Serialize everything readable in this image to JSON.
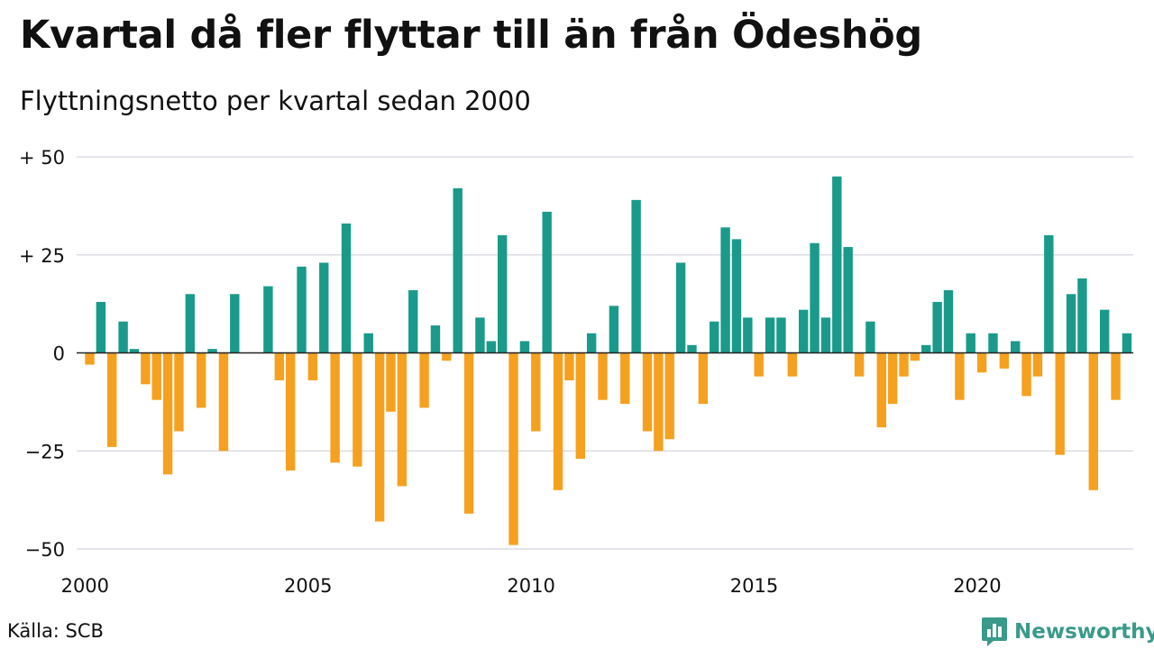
{
  "chart_data": {
    "type": "bar",
    "title": "Kvartal då fler flyttar till än från Ödeshög",
    "subtitle": "Flyttningsnetto per kvartal sedan 2000",
    "ylim": [
      -50,
      50
    ],
    "y_ticks": [
      {
        "value": 50,
        "label": "+ 50"
      },
      {
        "value": 25,
        "label": "+ 25"
      },
      {
        "value": 0,
        "label": "0"
      },
      {
        "value": -25,
        "label": "−25"
      },
      {
        "value": -50,
        "label": "−50"
      }
    ],
    "x_ticks": [
      {
        "value": 2000,
        "label": "2000"
      },
      {
        "value": 2005,
        "label": "2005"
      },
      {
        "value": 2010,
        "label": "2010"
      },
      {
        "value": 2015,
        "label": "2015"
      },
      {
        "value": 2020,
        "label": "2020"
      }
    ],
    "grid": true,
    "colors": {
      "positive": "#1a9a8a",
      "negative": "#f5a11f",
      "grid": "#dcdce6",
      "axis": "#222222"
    },
    "quarters_from_2000": [
      {
        "quarter": "2000 Q1",
        "value": -3
      },
      {
        "quarter": "2000 Q2",
        "value": 13
      },
      {
        "quarter": "2000 Q3",
        "value": -24
      },
      {
        "quarter": "2000 Q4",
        "value": 8
      },
      {
        "quarter": "2001 Q1",
        "value": 1
      },
      {
        "quarter": "2001 Q2",
        "value": -8
      },
      {
        "quarter": "2001 Q3",
        "value": -12
      },
      {
        "quarter": "2001 Q4",
        "value": -31
      },
      {
        "quarter": "2002 Q1",
        "value": -20
      },
      {
        "quarter": "2002 Q2",
        "value": 15
      },
      {
        "quarter": "2002 Q3",
        "value": -14
      },
      {
        "quarter": "2002 Q4",
        "value": 1
      },
      {
        "quarter": "2003 Q1",
        "value": -25
      },
      {
        "quarter": "2003 Q2",
        "value": 15
      },
      {
        "quarter": "2003 Q3",
        "value": 0
      },
      {
        "quarter": "2003 Q4",
        "value": 0
      },
      {
        "quarter": "2004 Q1",
        "value": 17
      },
      {
        "quarter": "2004 Q2",
        "value": -7
      },
      {
        "quarter": "2004 Q3",
        "value": -30
      },
      {
        "quarter": "2004 Q4",
        "value": 22
      },
      {
        "quarter": "2005 Q1",
        "value": -7
      },
      {
        "quarter": "2005 Q2",
        "value": 23
      },
      {
        "quarter": "2005 Q3",
        "value": -28
      },
      {
        "quarter": "2005 Q4",
        "value": 33
      },
      {
        "quarter": "2006 Q1",
        "value": -29
      },
      {
        "quarter": "2006 Q2",
        "value": 5
      },
      {
        "quarter": "2006 Q3",
        "value": -43
      },
      {
        "quarter": "2006 Q4",
        "value": -15
      },
      {
        "quarter": "2007 Q1",
        "value": -34
      },
      {
        "quarter": "2007 Q2",
        "value": 16
      },
      {
        "quarter": "2007 Q3",
        "value": -14
      },
      {
        "quarter": "2007 Q4",
        "value": 7
      },
      {
        "quarter": "2008 Q1",
        "value": -2
      },
      {
        "quarter": "2008 Q2",
        "value": 42
      },
      {
        "quarter": "2008 Q3",
        "value": -41
      },
      {
        "quarter": "2008 Q4",
        "value": 9
      },
      {
        "quarter": "2009 Q1",
        "value": 3
      },
      {
        "quarter": "2009 Q2",
        "value": 30
      },
      {
        "quarter": "2009 Q3",
        "value": -49
      },
      {
        "quarter": "2009 Q4",
        "value": 3
      },
      {
        "quarter": "2010 Q1",
        "value": -20
      },
      {
        "quarter": "2010 Q2",
        "value": 36
      },
      {
        "quarter": "2010 Q3",
        "value": -35
      },
      {
        "quarter": "2010 Q4",
        "value": -7
      },
      {
        "quarter": "2011 Q1",
        "value": -27
      },
      {
        "quarter": "2011 Q2",
        "value": 5
      },
      {
        "quarter": "2011 Q3",
        "value": -12
      },
      {
        "quarter": "2011 Q4",
        "value": 12
      },
      {
        "quarter": "2012 Q1",
        "value": -13
      },
      {
        "quarter": "2012 Q2",
        "value": 39
      },
      {
        "quarter": "2012 Q3",
        "value": -20
      },
      {
        "quarter": "2012 Q4",
        "value": -25
      },
      {
        "quarter": "2013 Q1",
        "value": -22
      },
      {
        "quarter": "2013 Q2",
        "value": 23
      },
      {
        "quarter": "2013 Q3",
        "value": 2
      },
      {
        "quarter": "2013 Q4",
        "value": -13
      },
      {
        "quarter": "2014 Q1",
        "value": 8
      },
      {
        "quarter": "2014 Q2",
        "value": 32
      },
      {
        "quarter": "2014 Q3",
        "value": 29
      },
      {
        "quarter": "2014 Q4",
        "value": 9
      },
      {
        "quarter": "2015 Q1",
        "value": -6
      },
      {
        "quarter": "2015 Q2",
        "value": 9
      },
      {
        "quarter": "2015 Q3",
        "value": 9
      },
      {
        "quarter": "2015 Q4",
        "value": -6
      },
      {
        "quarter": "2016 Q1",
        "value": 11
      },
      {
        "quarter": "2016 Q2",
        "value": 28
      },
      {
        "quarter": "2016 Q3",
        "value": 9
      },
      {
        "quarter": "2016 Q4",
        "value": 45
      },
      {
        "quarter": "2017 Q1",
        "value": 27
      },
      {
        "quarter": "2017 Q2",
        "value": -6
      },
      {
        "quarter": "2017 Q3",
        "value": 8
      },
      {
        "quarter": "2017 Q4",
        "value": -19
      },
      {
        "quarter": "2018 Q1",
        "value": -13
      },
      {
        "quarter": "2018 Q2",
        "value": -6
      },
      {
        "quarter": "2018 Q3",
        "value": -2
      },
      {
        "quarter": "2018 Q4",
        "value": 2
      },
      {
        "quarter": "2019 Q1",
        "value": 13
      },
      {
        "quarter": "2019 Q2",
        "value": 16
      },
      {
        "quarter": "2019 Q3",
        "value": -12
      },
      {
        "quarter": "2019 Q4",
        "value": 5
      },
      {
        "quarter": "2020 Q1",
        "value": -5
      },
      {
        "quarter": "2020 Q2",
        "value": 5
      },
      {
        "quarter": "2020 Q3",
        "value": -4
      },
      {
        "quarter": "2020 Q4",
        "value": 3
      },
      {
        "quarter": "2021 Q1",
        "value": -11
      },
      {
        "quarter": "2021 Q2",
        "value": -6
      },
      {
        "quarter": "2021 Q3",
        "value": 30
      },
      {
        "quarter": "2021 Q4",
        "value": -26
      },
      {
        "quarter": "2022 Q1",
        "value": 15
      },
      {
        "quarter": "2022 Q2",
        "value": 19
      },
      {
        "quarter": "2022 Q3",
        "value": -35
      },
      {
        "quarter": "2022 Q4",
        "value": 11
      },
      {
        "quarter": "2023 Q1",
        "value": -12
      },
      {
        "quarter": "2023 Q2",
        "value": 5
      }
    ]
  },
  "footer": {
    "source": "Källa: SCB",
    "brand": "Newsworthy",
    "brand_icon": "bar-chart-speech-icon"
  }
}
